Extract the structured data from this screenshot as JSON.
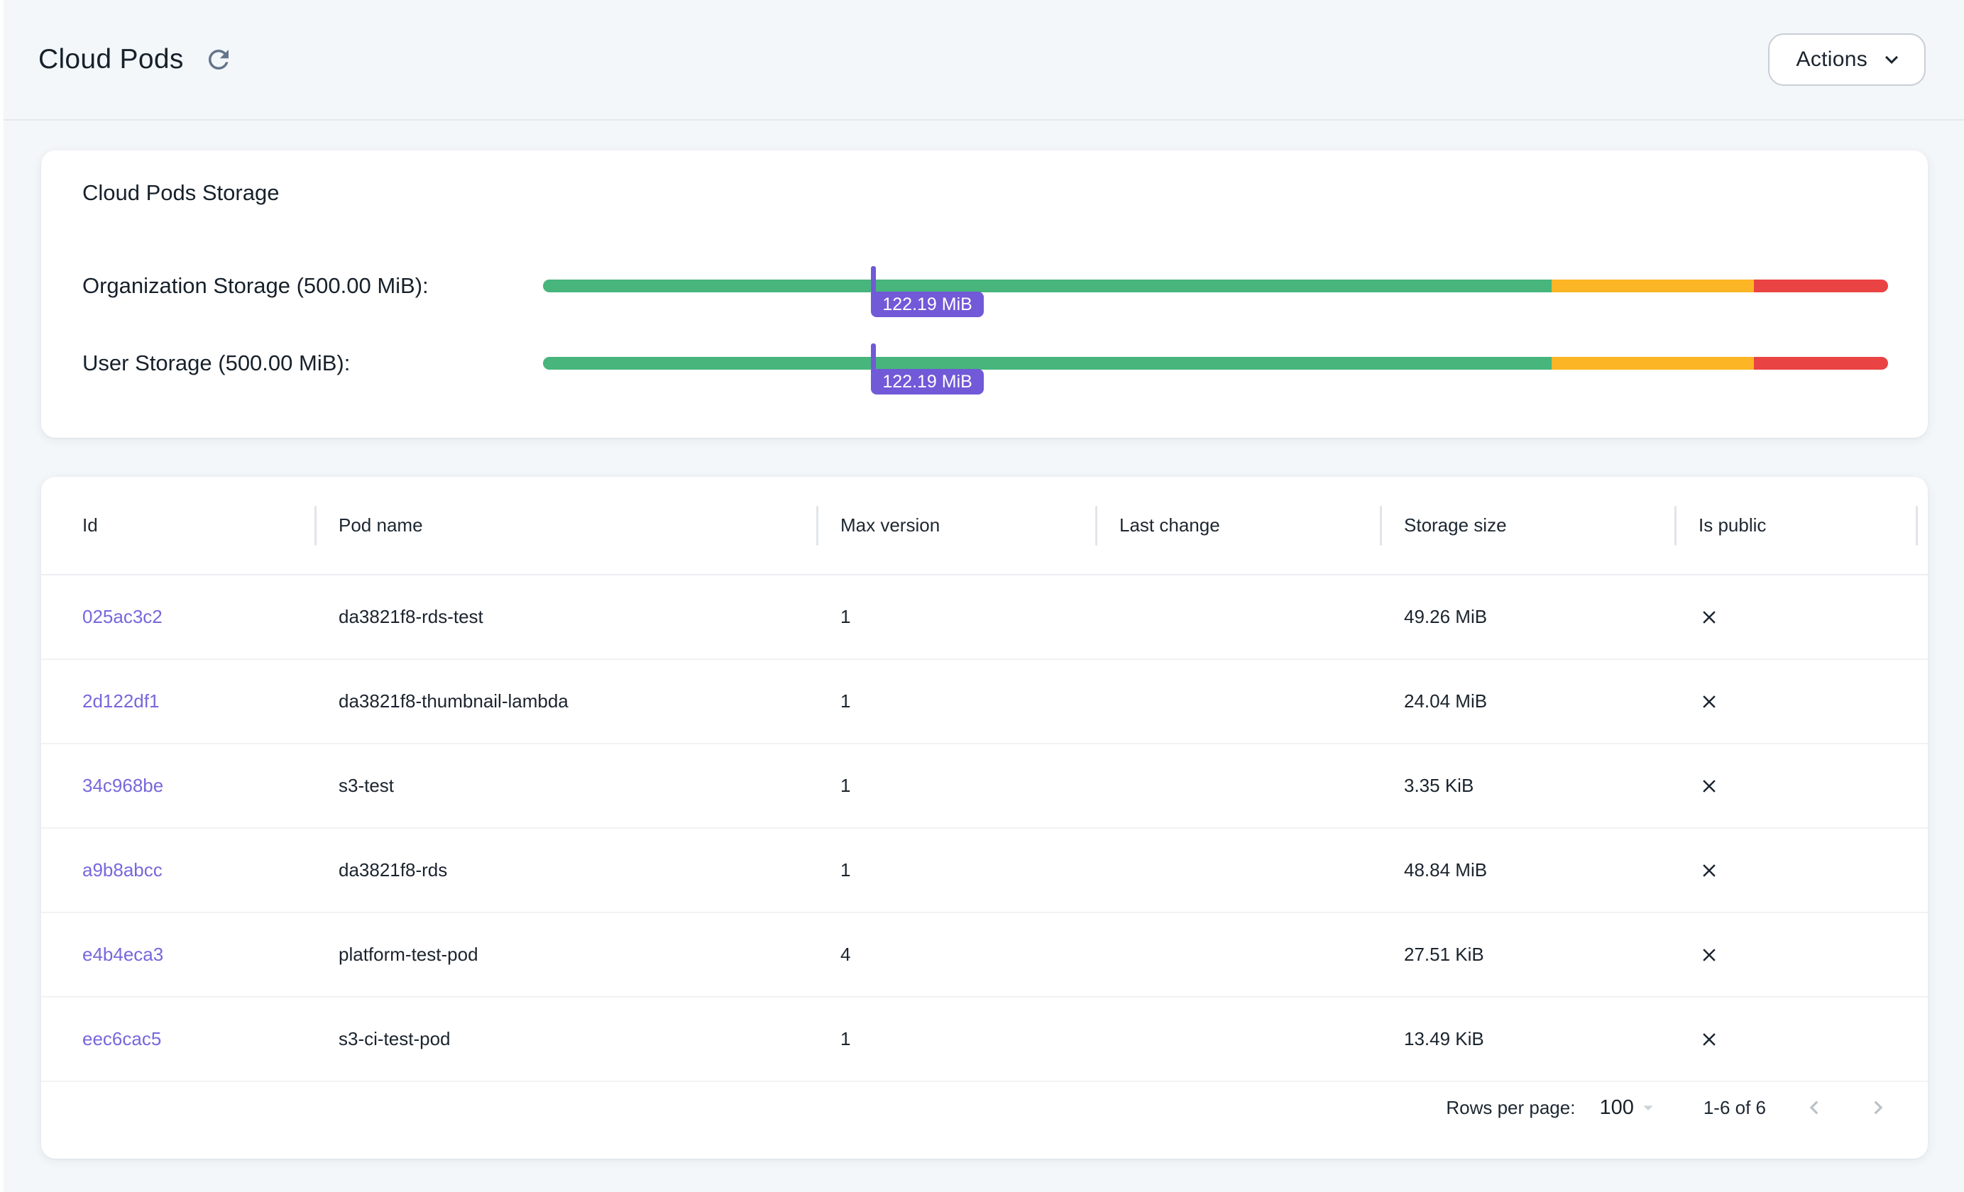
{
  "page": {
    "title": "Cloud Pods",
    "actions_button": "Actions"
  },
  "storage_card": {
    "title": "Cloud Pods Storage",
    "marker_color": "#7159d8",
    "bars": [
      {
        "label": "Organization Storage (500.00 MiB):",
        "used_label": "122.19 MiB",
        "used_percent": 24.4,
        "segments": [
          {
            "name": "safe",
            "color": "#47b57c",
            "percent": 75
          },
          {
            "name": "warning",
            "color": "#fcb525",
            "percent": 15
          },
          {
            "name": "critical",
            "color": "#ea4343",
            "percent": 10
          }
        ]
      },
      {
        "label": "User Storage (500.00 MiB):",
        "used_label": "122.19 MiB",
        "used_percent": 24.4,
        "segments": [
          {
            "name": "safe",
            "color": "#47b57c",
            "percent": 75
          },
          {
            "name": "warning",
            "color": "#fcb525",
            "percent": 15
          },
          {
            "name": "critical",
            "color": "#ea4343",
            "percent": 10
          }
        ]
      }
    ]
  },
  "table": {
    "columns": [
      "Id",
      "Pod name",
      "Max version",
      "Last change",
      "Storage size",
      "Is public"
    ],
    "rows": [
      {
        "id": "025ac3c2",
        "pod_name": "da3821f8-rds-test",
        "max_version": "1",
        "last_change": "",
        "storage_size": "49.26 MiB",
        "is_public": false
      },
      {
        "id": "2d122df1",
        "pod_name": "da3821f8-thumbnail-lambda",
        "max_version": "1",
        "last_change": "",
        "storage_size": "24.04 MiB",
        "is_public": false
      },
      {
        "id": "34c968be",
        "pod_name": "s3-test",
        "max_version": "1",
        "last_change": "",
        "storage_size": "3.35 KiB",
        "is_public": false
      },
      {
        "id": "a9b8abcc",
        "pod_name": "da3821f8-rds",
        "max_version": "1",
        "last_change": "",
        "storage_size": "48.84 MiB",
        "is_public": false
      },
      {
        "id": "e4b4eca3",
        "pod_name": "platform-test-pod",
        "max_version": "4",
        "last_change": "",
        "storage_size": "27.51 KiB",
        "is_public": false
      },
      {
        "id": "eec6cac5",
        "pod_name": "s3-ci-test-pod",
        "max_version": "1",
        "last_change": "",
        "storage_size": "13.49 KiB",
        "is_public": false
      }
    ]
  },
  "pagination": {
    "rows_per_page_label": "Rows per page:",
    "rows_per_page_value": "100",
    "range_label": "1-6 of 6"
  },
  "colors": {
    "page_background": "#f3f7fa",
    "link": "#7767dc",
    "accent_purple": "#7159d8",
    "bar_green": "#47b57c",
    "bar_yellow": "#fcb525",
    "bar_red": "#ea4343"
  }
}
